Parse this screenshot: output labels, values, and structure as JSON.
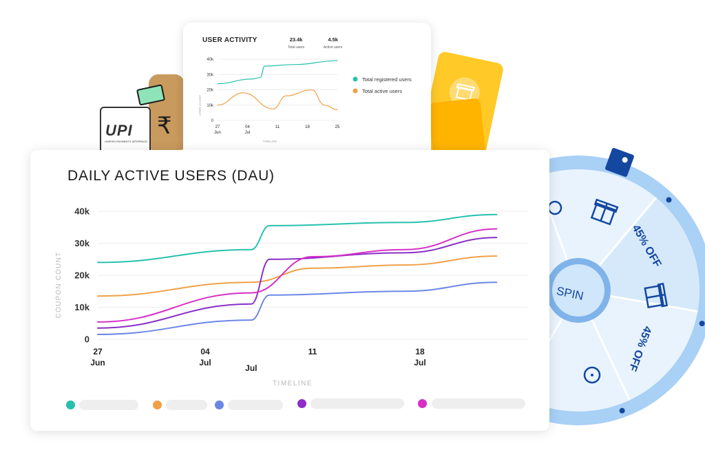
{
  "colors": {
    "teal": "#26c0ad",
    "orange": "#f0a046",
    "blue": "#6b87e6",
    "purple": "#8a2fc7",
    "magenta": "#d62fc7",
    "wheel_light": "#cfe6fb",
    "wheel_ring": "#a9d0f5",
    "wheel_dark": "#1447a0"
  },
  "decor": {
    "upi_logo": "UPI",
    "upi_sub": "UNIFIED PAYMENTS INTERFACE",
    "rupee_symbol": "₹",
    "wheel": {
      "center_label": "SPIN",
      "segments": [
        "smile-icon",
        "gift-icon",
        "45% OFF",
        "gift-icon",
        "45% OFF",
        "smile-icon"
      ]
    }
  },
  "chart_data": [
    {
      "type": "line",
      "title": "USER ACTIVITY",
      "stats": [
        {
          "value": "23.4k",
          "label": "Total users"
        },
        {
          "value": "4.5k",
          "label": "Active users"
        }
      ],
      "ylabel": "USER COUNT",
      "xlabel": "TIMELINE",
      "yticks": [
        "40k",
        "30k",
        "20k",
        "10k",
        "0"
      ],
      "ylim": [
        0,
        40000
      ],
      "xlim": [
        0,
        28
      ],
      "xticks": [
        {
          "x": 0,
          "line1": "27",
          "line2": "Jun"
        },
        {
          "x": 7,
          "line1": "04",
          "line2": "Jul"
        },
        {
          "x": 14,
          "line1": "11",
          "line2": ""
        },
        {
          "x": 21,
          "line1": "18",
          "line2": ""
        },
        {
          "x": 28,
          "line1": "25",
          "line2": ""
        }
      ],
      "series": [
        {
          "name": "Total registered users",
          "color": "#26c0ad",
          "points": [
            [
              0,
              24000
            ],
            [
              8,
              27000
            ],
            [
              10,
              28000
            ],
            [
              11,
              35500
            ],
            [
              18,
              36500
            ],
            [
              28,
              39000
            ]
          ]
        },
        {
          "name": "Total active users",
          "color": "#f0a046",
          "points": [
            [
              0,
              10000
            ],
            [
              6,
              18000
            ],
            [
              13,
              7500
            ],
            [
              16,
              16000
            ],
            [
              22,
              20000
            ],
            [
              25,
              10000
            ],
            [
              28,
              7000
            ]
          ]
        }
      ]
    },
    {
      "type": "line",
      "title": "DAILY ACTIVE USERS (DAU)",
      "ylabel": "COUPON COUNT",
      "xlabel": "TIMELINE",
      "yticks": [
        "40k",
        "30k",
        "20k",
        "10k",
        "0"
      ],
      "ylim": [
        0,
        40000
      ],
      "xlim": [
        0,
        28
      ],
      "xticks": [
        {
          "x": 0,
          "line1": "27",
          "line2": "Jun"
        },
        {
          "x": 7,
          "line1": "04",
          "line2": "Jul"
        },
        {
          "x": 10,
          "line1": "",
          "line2": "Jul"
        },
        {
          "x": 14,
          "line1": "11",
          "line2": ""
        },
        {
          "x": 21,
          "line1": "18",
          "line2": "Jul"
        }
      ],
      "series": [
        {
          "color": "#26c0ad",
          "points": [
            [
              0,
              24000
            ],
            [
              10,
              28000
            ],
            [
              11.2,
              35500
            ],
            [
              20,
              36500
            ],
            [
              26,
              39000
            ]
          ]
        },
        {
          "color": "#f0a046",
          "points": [
            [
              0,
              13500
            ],
            [
              10,
              17800
            ],
            [
              14,
              22200
            ],
            [
              20,
              23200
            ],
            [
              26,
              26000
            ]
          ]
        },
        {
          "color": "#6b87e6",
          "points": [
            [
              0,
              1500
            ],
            [
              10,
              6000
            ],
            [
              11.2,
              13800
            ],
            [
              20,
              15000
            ],
            [
              26,
              17800
            ]
          ]
        },
        {
          "color": "#8a2fc7",
          "points": [
            [
              0,
              3500
            ],
            [
              10,
              11000
            ],
            [
              11.2,
              25000
            ],
            [
              20,
              27000
            ],
            [
              26,
              31800
            ]
          ]
        },
        {
          "color": "#d62fc7",
          "points": [
            [
              0,
              5400
            ],
            [
              10,
              14500
            ],
            [
              14,
              25800
            ],
            [
              20,
              28000
            ],
            [
              26,
              34500
            ]
          ]
        }
      ]
    }
  ]
}
